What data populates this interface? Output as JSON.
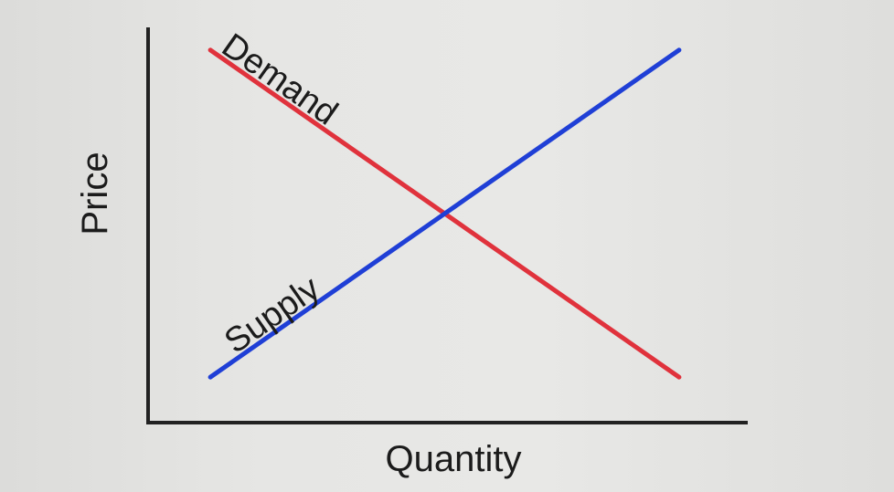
{
  "chart_data": {
    "type": "line",
    "xlabel": "Quantity",
    "ylabel": "Price",
    "xlim": [
      0,
      10
    ],
    "ylim": [
      0,
      10
    ],
    "grid": false,
    "legend": "none",
    "series": [
      {
        "name": "Demand",
        "color": "#e0323c",
        "x": [
          1.0,
          9.0
        ],
        "y": [
          9.0,
          1.0
        ]
      },
      {
        "name": "Supply",
        "color": "#1f3fd6",
        "x": [
          1.0,
          9.0
        ],
        "y": [
          1.0,
          9.0
        ]
      }
    ]
  }
}
